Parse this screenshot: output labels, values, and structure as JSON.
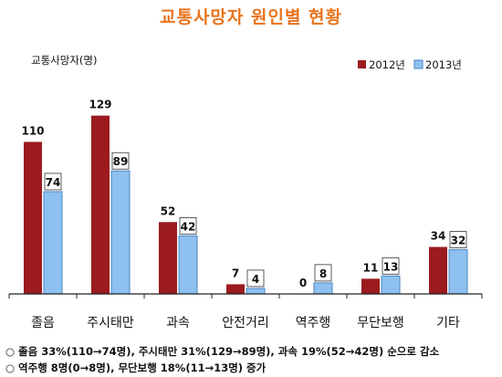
{
  "chart_data": {
    "type": "bar",
    "title": "교통사망자 원인별 현황",
    "ylabel": "교통사망자(명)",
    "categories": [
      "졸음",
      "주시태만",
      "과속",
      "안전거리",
      "역주행",
      "무단보행",
      "기타"
    ],
    "series": [
      {
        "name": "2012년",
        "color": "#9b1b1e",
        "values": [
          110,
          129,
          52,
          7,
          0,
          11,
          34
        ]
      },
      {
        "name": "2013년",
        "color": "#8ec1ef",
        "values": [
          74,
          89,
          42,
          4,
          8,
          13,
          32
        ]
      }
    ],
    "ylim": [
      0,
      140
    ],
    "grid": false,
    "legend": "top-right",
    "label_style": [
      "plain",
      "boxed"
    ]
  },
  "notes": [
    "○ 졸음 33%(110→74명), 주시태만 31%(129→89명), 과속 19%(52→42명) 순으로 감소",
    "○ 역주행 8명(0→8명), 무단보행 18%(11→13명) 증가"
  ]
}
